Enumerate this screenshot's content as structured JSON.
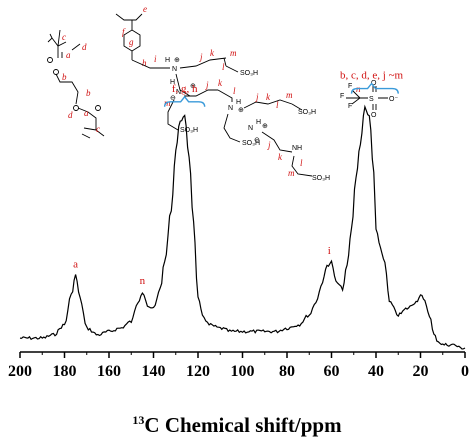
{
  "chart_data": {
    "type": "line",
    "xlabel_sup": "13",
    "xlabel": "C Chemical shift/ppm",
    "ylabel": "",
    "xlim": [
      200,
      0
    ],
    "x_reversed": true,
    "x_ticks": [
      "200",
      "180",
      "160",
      "140",
      "120",
      "100",
      "80",
      "60",
      "40",
      "20",
      "0"
    ],
    "y_ticks": [],
    "series": [
      {
        "x": [
          200,
          195,
          190,
          185,
          180,
          177,
          175,
          173,
          170,
          165,
          160,
          155,
          150,
          147,
          145,
          142,
          140,
          137,
          135,
          132,
          130,
          128,
          126,
          124,
          122,
          120,
          118,
          115,
          110,
          105,
          100,
          95,
          90,
          85,
          80,
          75,
          70,
          67,
          64,
          62,
          60,
          58,
          55,
          53,
          51,
          49,
          47,
          45,
          43,
          41,
          40,
          38,
          36,
          34,
          30,
          26,
          22,
          20,
          18,
          16,
          14,
          12,
          10,
          8,
          5,
          2,
          0
        ],
        "y": [
          0.03,
          0.03,
          0.03,
          0.04,
          0.07,
          0.16,
          0.22,
          0.15,
          0.06,
          0.04,
          0.05,
          0.06,
          0.08,
          0.14,
          0.17,
          0.12,
          0.12,
          0.18,
          0.26,
          0.42,
          0.6,
          0.69,
          0.7,
          0.58,
          0.38,
          0.15,
          0.1,
          0.07,
          0.06,
          0.05,
          0.05,
          0.05,
          0.05,
          0.05,
          0.06,
          0.07,
          0.1,
          0.14,
          0.2,
          0.25,
          0.26,
          0.2,
          0.18,
          0.25,
          0.36,
          0.52,
          0.62,
          0.73,
          0.7,
          0.53,
          0.36,
          0.3,
          0.26,
          0.14,
          0.1,
          0.12,
          0.14,
          0.16,
          0.14,
          0.1,
          0.04,
          0.02,
          0.01,
          0.01,
          0.01,
          0.0,
          0.0
        ]
      }
    ],
    "annotations": [
      {
        "text": "a",
        "x": 175,
        "y": 0.22
      },
      {
        "text": "n",
        "x": 145,
        "y": 0.17
      },
      {
        "text": "f, g, h",
        "x": 126,
        "y": 0.74,
        "bracket": [
          135,
          117
        ]
      },
      {
        "text": "i",
        "x": 61,
        "y": 0.26
      },
      {
        "text": "b, c, d, e, j ~m",
        "x": 42,
        "y": 0.78,
        "bracket": [
          51,
          30
        ]
      }
    ],
    "grid": false,
    "legend": "none"
  },
  "structures": {
    "crosslinker_labels": [
      "c",
      "a",
      "d",
      "b",
      "b",
      "d",
      "a",
      "c"
    ],
    "polymer_labels": [
      "e",
      "f",
      "g",
      "h",
      "i",
      "j",
      "k",
      "l",
      "m",
      "j",
      "k",
      "l",
      "m",
      "j",
      "k",
      "l",
      "m",
      "j",
      "k",
      "l",
      "m"
    ],
    "polymer_texts": [
      "H",
      "N",
      "N",
      "H",
      "N",
      "H",
      "N",
      "H",
      "NH",
      "SO₃H",
      "SO₃H",
      "SO₃H",
      "SO₃H"
    ],
    "charge_symbols": [
      "⊕",
      "⊕",
      "⊕",
      "⊕",
      "⊖",
      "⊖"
    ],
    "anion_labels": [
      "n"
    ],
    "anion_texts": [
      "F",
      "F",
      "F",
      "S",
      "O",
      "O",
      "O⁻"
    ]
  }
}
